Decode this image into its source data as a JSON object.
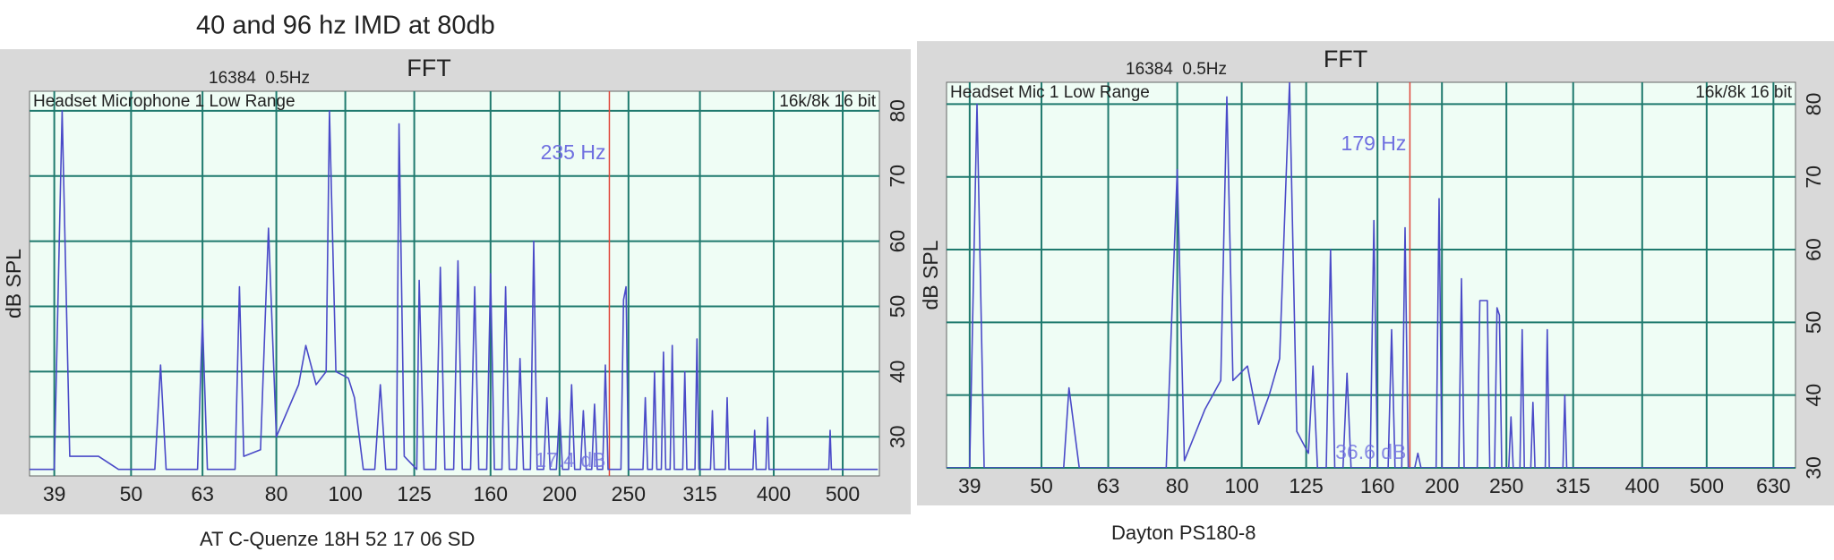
{
  "title": "40 and 96 hz IMD at 80db",
  "chart_data": [
    {
      "type": "line",
      "title": "FFT",
      "subtitle": "16384  0.5Hz",
      "caption": "AT C-Quenze 18H 52 17 06 SD",
      "source_label": "Headset Microphone 1 Low Range",
      "format_label": "16k/8k 16 bit",
      "y_label": "dB SPL",
      "cursor": {
        "value": 235,
        "label": "235 Hz"
      },
      "cursor_level": {
        "value": 17.4,
        "label": "17.4 dB"
      },
      "log_x": true,
      "grid": true,
      "color": "#4a4ac8",
      "cursor_color": "#e0453a",
      "xlim": [
        36,
        563
      ],
      "xticks": [
        39,
        50,
        63,
        80,
        100,
        125,
        160,
        200,
        250,
        315,
        400,
        500
      ],
      "ylim": [
        24,
        83
      ],
      "yticks": [
        30,
        40,
        50,
        60,
        70,
        80
      ],
      "x": [
        36,
        39,
        40,
        41,
        45,
        48,
        54,
        55,
        56,
        62,
        63,
        64,
        70,
        71,
        72,
        76,
        78,
        80,
        86,
        88,
        91,
        94,
        95,
        97,
        101,
        103,
        106,
        110,
        112,
        114,
        118,
        119,
        121,
        126,
        127,
        129,
        134,
        136,
        138,
        142,
        144,
        146,
        150,
        152,
        154,
        158,
        160,
        162,
        166,
        168,
        170,
        174,
        176,
        178,
        182,
        184,
        186,
        190,
        192,
        194,
        198,
        200,
        202,
        206,
        208,
        210,
        214,
        216,
        218,
        222,
        224,
        226,
        230,
        232,
        234,
        244,
        246,
        248,
        250,
        262,
        264,
        266,
        270,
        272,
        274,
        278,
        280,
        282,
        286,
        288,
        290,
        298,
        300,
        302,
        310,
        312,
        314,
        326,
        328,
        330,
        342,
        344,
        346,
        374,
        376,
        378,
        390,
        392,
        394,
        478,
        480,
        482,
        560
      ],
      "values": [
        25,
        25,
        80,
        27,
        27,
        25,
        25,
        41,
        25,
        25,
        48,
        25,
        25,
        53,
        27,
        28,
        62,
        30,
        38,
        44,
        38,
        40,
        80,
        40,
        39,
        36,
        25,
        25,
        38,
        25,
        25,
        78,
        27,
        25,
        54,
        25,
        25,
        56,
        25,
        25,
        57,
        25,
        25,
        53,
        25,
        25,
        55,
        25,
        25,
        53,
        25,
        25,
        42,
        25,
        25,
        60,
        25,
        25,
        36,
        25,
        25,
        34,
        25,
        25,
        38,
        25,
        25,
        34,
        25,
        25,
        35,
        25,
        25,
        41,
        25,
        25,
        51,
        53,
        25,
        25,
        36,
        25,
        25,
        40,
        25,
        25,
        43,
        25,
        25,
        44,
        25,
        25,
        40,
        25,
        25,
        45,
        25,
        25,
        34,
        25,
        25,
        36,
        25,
        25,
        31,
        25,
        25,
        33,
        25,
        25,
        31,
        25,
        25
      ]
    },
    {
      "type": "line",
      "title": "FFT",
      "subtitle": "16384  0.5Hz",
      "caption": "Dayton PS180-8",
      "source_label": "Headset Mic 1 Low Range",
      "format_label": "16k/8k 16 bit",
      "y_label": "dB SPL",
      "cursor": {
        "value": 179,
        "label": "179 Hz"
      },
      "cursor_level": {
        "value": 36.6,
        "label": "36.6 dB"
      },
      "log_x": true,
      "grid": true,
      "color": "#4a4ac8",
      "cursor_color": "#e0453a",
      "xlim": [
        36,
        680
      ],
      "xticks": [
        39,
        50,
        63,
        80,
        100,
        125,
        160,
        200,
        250,
        315,
        400,
        500,
        630
      ],
      "ylim": [
        30,
        83
      ],
      "yticks": [
        30,
        40,
        50,
        60,
        70,
        80
      ],
      "x": [
        36,
        39,
        40,
        41,
        54,
        55,
        57,
        77,
        80,
        82,
        88,
        93,
        95,
        97,
        102,
        106,
        110,
        114,
        118,
        121,
        126,
        128,
        130,
        134,
        136,
        138,
        142,
        144,
        146,
        156,
        158,
        160,
        166,
        168,
        170,
        174,
        176,
        178,
        182,
        184,
        186,
        196,
        198,
        200,
        212,
        214,
        216,
        226,
        228,
        234,
        236,
        240,
        242,
        244,
        246,
        252,
        254,
        256,
        262,
        264,
        266,
        272,
        274,
        276,
        286,
        288,
        290,
        304,
        306,
        308,
        676
      ],
      "values": [
        30,
        30,
        80,
        30,
        30,
        41,
        30,
        30,
        71,
        31,
        38,
        42,
        81,
        42,
        44,
        36,
        40,
        45,
        83,
        35,
        32,
        44,
        30,
        30,
        60,
        30,
        30,
        43,
        30,
        30,
        64,
        30,
        30,
        49,
        30,
        30,
        63,
        30,
        30,
        32,
        30,
        30,
        67,
        30,
        30,
        56,
        30,
        30,
        53,
        53,
        30,
        30,
        52,
        51,
        30,
        30,
        37,
        30,
        30,
        49,
        30,
        30,
        39,
        30,
        30,
        49,
        30,
        30,
        40,
        30,
        30
      ]
    }
  ]
}
